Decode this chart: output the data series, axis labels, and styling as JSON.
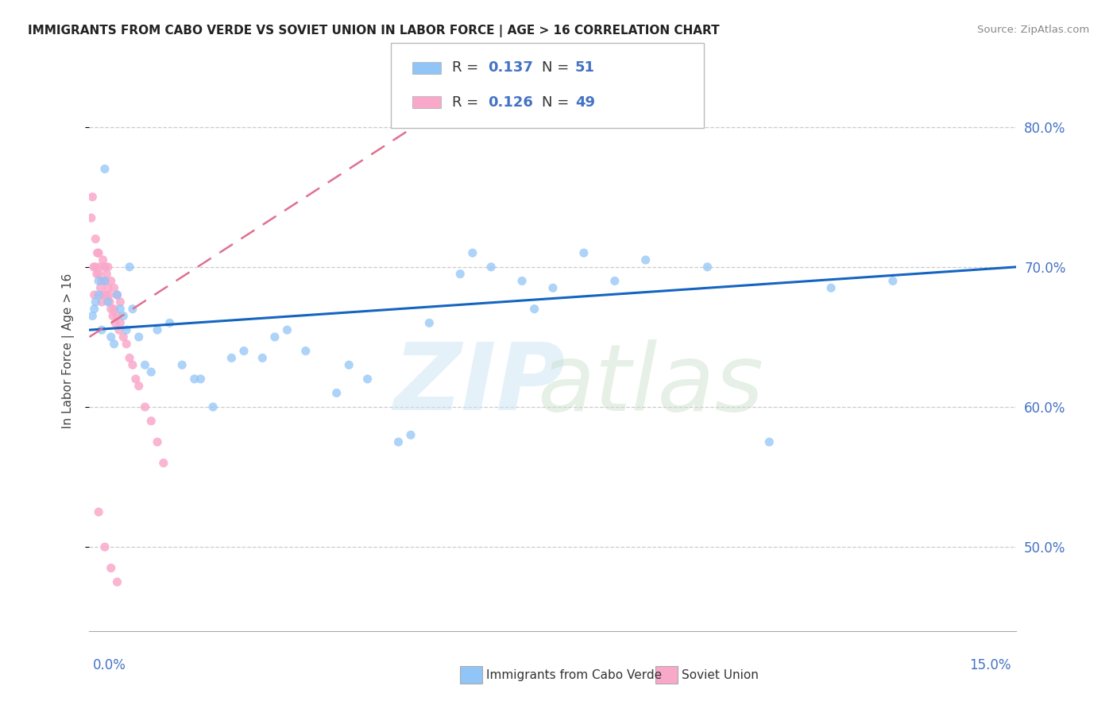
{
  "title": "IMMIGRANTS FROM CABO VERDE VS SOVIET UNION IN LABOR FORCE | AGE > 16 CORRELATION CHART",
  "source": "Source: ZipAtlas.com",
  "ylabel": "In Labor Force | Age > 16",
  "legend_label1": "Immigrants from Cabo Verde",
  "legend_label2": "Soviet Union",
  "r1": 0.137,
  "n1": 51,
  "r2": 0.126,
  "n2": 49,
  "xlim": [
    0.0,
    15.0
  ],
  "ylim": [
    44.0,
    84.0
  ],
  "yticks": [
    50.0,
    60.0,
    70.0,
    80.0
  ],
  "color_cabo": "#92c5f7",
  "color_soviet": "#f9a8c9",
  "color_line_cabo": "#1565C0",
  "color_line_soviet": "#e07090",
  "cabo_x": [
    0.05,
    0.08,
    0.1,
    0.15,
    0.2,
    0.25,
    0.3,
    0.35,
    0.4,
    0.45,
    0.5,
    0.55,
    0.6,
    0.7,
    0.8,
    0.9,
    1.0,
    1.1,
    1.3,
    1.5,
    1.7,
    2.0,
    2.3,
    2.5,
    3.0,
    3.5,
    4.0,
    4.5,
    5.0,
    5.5,
    6.0,
    6.5,
    7.0,
    7.5,
    8.0,
    8.5,
    9.0,
    10.0,
    11.0,
    12.0,
    13.0,
    0.25,
    0.15,
    0.65,
    1.8,
    2.8,
    3.2,
    4.2,
    5.2,
    6.2,
    7.2
  ],
  "cabo_y": [
    66.5,
    67.0,
    67.5,
    68.0,
    65.5,
    69.0,
    67.5,
    65.0,
    64.5,
    68.0,
    67.0,
    66.5,
    65.5,
    67.0,
    65.0,
    63.0,
    62.5,
    65.5,
    66.0,
    63.0,
    62.0,
    60.0,
    63.5,
    64.0,
    65.0,
    64.0,
    61.0,
    62.0,
    57.5,
    66.0,
    69.5,
    70.0,
    69.0,
    68.5,
    71.0,
    69.0,
    70.5,
    70.0,
    57.5,
    68.5,
    69.0,
    77.0,
    69.0,
    70.0,
    62.0,
    63.5,
    65.5,
    63.0,
    58.0,
    71.0,
    67.0
  ],
  "soviet_x": [
    0.03,
    0.05,
    0.07,
    0.08,
    0.1,
    0.1,
    0.12,
    0.13,
    0.15,
    0.15,
    0.17,
    0.18,
    0.2,
    0.2,
    0.22,
    0.22,
    0.25,
    0.25,
    0.27,
    0.28,
    0.3,
    0.3,
    0.32,
    0.33,
    0.35,
    0.35,
    0.38,
    0.4,
    0.4,
    0.42,
    0.45,
    0.45,
    0.48,
    0.5,
    0.5,
    0.55,
    0.6,
    0.65,
    0.7,
    0.75,
    0.8,
    0.9,
    1.0,
    1.1,
    1.2,
    0.15,
    0.25,
    0.35,
    0.45
  ],
  "soviet_y": [
    73.5,
    75.0,
    70.0,
    68.0,
    72.0,
    70.0,
    69.5,
    71.0,
    71.0,
    69.5,
    70.0,
    68.5,
    69.0,
    67.5,
    68.0,
    70.5,
    69.0,
    70.0,
    68.0,
    69.5,
    68.5,
    70.0,
    68.0,
    67.5,
    67.0,
    69.0,
    66.5,
    67.0,
    68.5,
    66.0,
    66.5,
    68.0,
    65.5,
    66.0,
    67.5,
    65.0,
    64.5,
    63.5,
    63.0,
    62.0,
    61.5,
    60.0,
    59.0,
    57.5,
    56.0,
    52.5,
    50.0,
    48.5,
    47.5
  ]
}
